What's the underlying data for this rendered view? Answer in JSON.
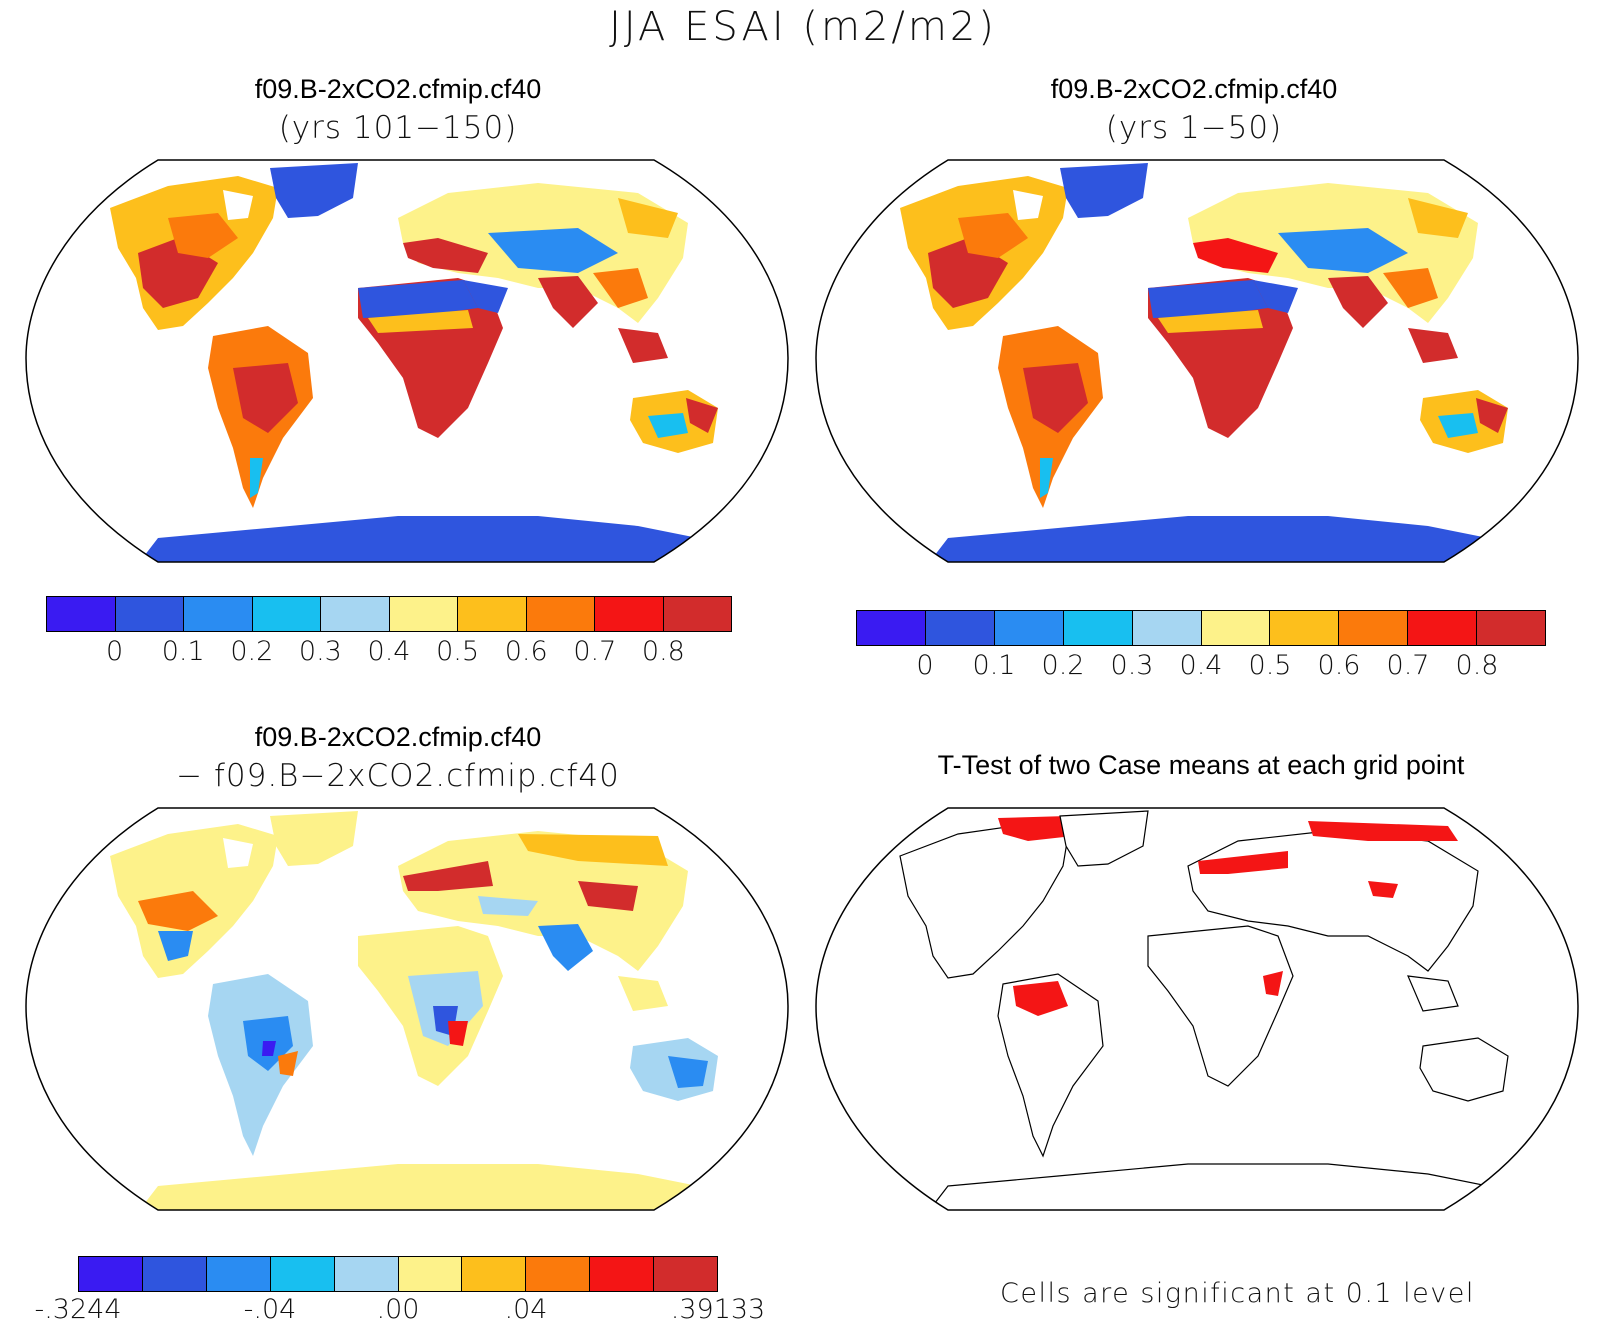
{
  "figure_title": "JJA ESAI (m2/m2)",
  "panels": {
    "top_left": {
      "title": "f09.B-2xCO2.cfmip.cf40",
      "subtitle": "(yrs 101−150)"
    },
    "top_right": {
      "title": "f09.B-2xCO2.cfmip.cf40",
      "subtitle": "(yrs 1−50)"
    },
    "bottom_left": {
      "title": "f09.B-2xCO2.cfmip.cf40",
      "subtitle": "− f09.B−2xCO2.cfmip.cf40"
    },
    "bottom_right": {
      "title": "T-Test of two Case means at each grid point",
      "note": "Cells are significant at 0.1 level"
    }
  },
  "colorbars": {
    "absolute": {
      "colors": [
        "#3a1bf2",
        "#2f55de",
        "#2a8cf2",
        "#18bff0",
        "#a6d6f2",
        "#fdf28a",
        "#fdbf1c",
        "#fb7a0c",
        "#f41515",
        "#d22c2c"
      ],
      "labels": [
        "0",
        "0.1",
        "0.2",
        "0.3",
        "0.4",
        "0.5",
        "0.6",
        "0.7",
        "0.8"
      ]
    },
    "difference": {
      "colors": [
        "#3a1bf2",
        "#2f55de",
        "#2a8cf2",
        "#18bff0",
        "#a6d6f2",
        "#fdf28a",
        "#fdbf1c",
        "#fb7a0c",
        "#f41515",
        "#d22c2c"
      ],
      "labels": [
        "-.3244",
        "-.04",
        ".00",
        ".04",
        ".39133"
      ]
    }
  }
}
